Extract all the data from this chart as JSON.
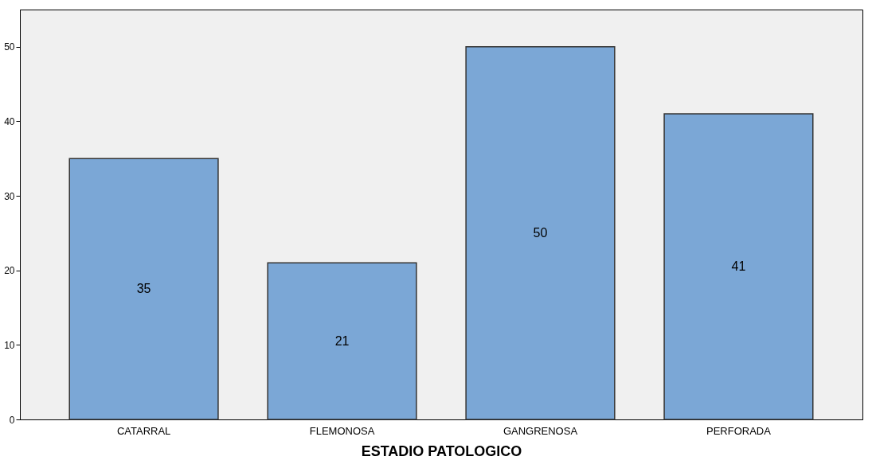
{
  "chart_data": {
    "type": "bar",
    "xlabel": "ESTADIO PATOLOGICO",
    "categories": [
      "CATARRAL",
      "FLEMONOSA",
      "GANGRENOSA",
      "PERFORADA"
    ],
    "values": [
      35,
      21,
      50,
      41
    ],
    "color": "#7ba7d6",
    "ylim": [
      0,
      55
    ],
    "yticks": [
      0,
      10,
      20,
      30,
      40,
      50
    ],
    "grid": false,
    "data_labels": true
  }
}
